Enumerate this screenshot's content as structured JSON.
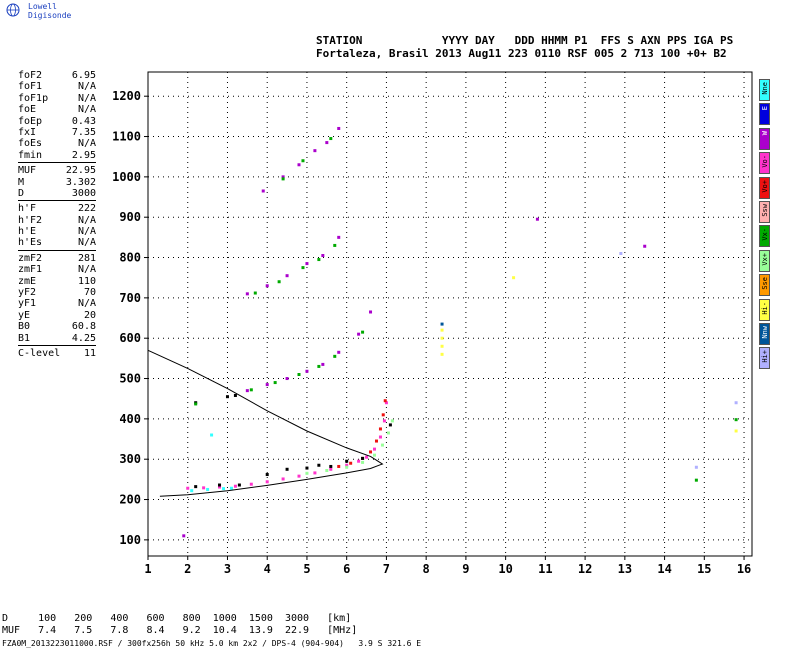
{
  "brand": {
    "name": "Lowell Digisonde",
    "icon": "globe-icon"
  },
  "header": {
    "line1": "STATION            YYYY DAY   DDD HHMM P1  FFS S AXN PPS IGA PS",
    "line2": "Fortaleza, Brasil 2013 Aug11 223 0110 RSF 005 2 713 100 +0+ B2"
  },
  "params": {
    "group1": [
      {
        "k": "foF2",
        "v": "6.95"
      },
      {
        "k": "foF1",
        "v": "N/A"
      },
      {
        "k": "foF1p",
        "v": "N/A"
      },
      {
        "k": "foE",
        "v": "N/A"
      },
      {
        "k": "foEp",
        "v": "0.43"
      },
      {
        "k": "fxI",
        "v": "7.35"
      },
      {
        "k": "foEs",
        "v": "N/A"
      },
      {
        "k": "fmin",
        "v": "2.95"
      }
    ],
    "group2": [
      {
        "k": "MUF",
        "v": "22.95"
      },
      {
        "k": "M",
        "v": "3.302"
      },
      {
        "k": "D",
        "v": "3000"
      }
    ],
    "group3": [
      {
        "k": "h'F",
        "v": "222"
      },
      {
        "k": "h'F2",
        "v": "N/A"
      },
      {
        "k": "h'E",
        "v": "N/A"
      },
      {
        "k": "h'Es",
        "v": "N/A"
      }
    ],
    "group4": [
      {
        "k": "zmF2",
        "v": "281"
      },
      {
        "k": "zmF1",
        "v": "N/A"
      },
      {
        "k": "zmE",
        "v": "110"
      },
      {
        "k": "yF2",
        "v": "70"
      },
      {
        "k": "yF1",
        "v": "N/A"
      },
      {
        "k": "yE",
        "v": "20"
      },
      {
        "k": "B0",
        "v": "60.8"
      },
      {
        "k": "B1",
        "v": "4.25"
      }
    ],
    "group5": [
      {
        "k": "C-level",
        "v": "11"
      }
    ]
  },
  "legend": [
    {
      "label": "Nne",
      "color": "#33ffff"
    },
    {
      "label": "E",
      "color": "#0000dd"
    },
    {
      "label": "W",
      "color": "#aa00cc"
    },
    {
      "label": "Vo-",
      "color": "#ff33cc"
    },
    {
      "label": "Vo+",
      "color": "#ee1111"
    },
    {
      "label": "Ssw",
      "color": "#ffb0b0"
    },
    {
      "label": "Vx-",
      "color": "#00aa00"
    },
    {
      "label": "Vx+",
      "color": "#99ff99"
    },
    {
      "label": "Sse",
      "color": "#ff9900"
    },
    {
      "label": "Hi-",
      "color": "#ffff44"
    },
    {
      "label": "Nnw",
      "color": "#005599"
    },
    {
      "label": "Hi+",
      "color": "#b0b0ff"
    }
  ],
  "dtable": {
    "row1": "D     100   200   400   600   800  1000  1500  3000   [km]",
    "row2": "MUF   7.4   7.5   7.8   8.4   9.2  10.4  13.9  22.9   [MHz]"
  },
  "footer": "FZA0M_2013223011000.RSF / 300fx256h 50 kHz 5.0 km 2x2 / DPS-4 (904-904)   3.9 S 321.6 E",
  "chart_data": {
    "type": "scatter",
    "title": "",
    "xlabel": "",
    "ylabel": "",
    "xlim": [
      1,
      16.2
    ],
    "ylim": [
      60,
      1260
    ],
    "xticks": [
      1,
      2,
      3,
      4,
      5,
      6,
      7,
      8,
      9,
      10,
      11,
      12,
      13,
      14,
      15,
      16
    ],
    "yticks": [
      100,
      200,
      300,
      400,
      500,
      600,
      700,
      800,
      900,
      1000,
      1100,
      1200
    ],
    "grid": true,
    "series": [
      {
        "color": "#ff33cc",
        "points": [
          [
            2.0,
            228
          ],
          [
            2.4,
            229
          ],
          [
            2.8,
            231
          ],
          [
            3.2,
            233
          ],
          [
            3.6,
            238
          ],
          [
            4.0,
            244
          ],
          [
            4.4,
            251
          ],
          [
            4.8,
            258
          ],
          [
            5.2,
            266
          ],
          [
            5.6,
            275
          ],
          [
            6.0,
            285
          ],
          [
            6.3,
            295
          ],
          [
            6.5,
            305
          ],
          [
            6.7,
            325
          ],
          [
            6.85,
            355
          ],
          [
            6.95,
            395
          ],
          [
            7.0,
            440
          ]
        ]
      },
      {
        "color": "#ee1111",
        "points": [
          [
            5.8,
            282
          ],
          [
            6.1,
            290
          ],
          [
            6.4,
            302
          ],
          [
            6.6,
            318
          ],
          [
            6.75,
            345
          ],
          [
            6.85,
            375
          ],
          [
            6.92,
            410
          ],
          [
            6.97,
            445
          ]
        ]
      },
      {
        "color": "#99ff99",
        "points": [
          [
            5.0,
            265
          ],
          [
            5.5,
            272
          ],
          [
            6.0,
            280
          ],
          [
            6.4,
            292
          ],
          [
            6.7,
            310
          ],
          [
            6.9,
            335
          ],
          [
            7.05,
            365
          ],
          [
            7.15,
            395
          ]
        ]
      },
      {
        "color": "#000000",
        "points": [
          [
            2.2,
            232
          ],
          [
            2.8,
            236
          ],
          [
            3.3,
            236
          ],
          [
            4.0,
            262
          ],
          [
            4.5,
            275
          ],
          [
            5.0,
            278
          ],
          [
            5.3,
            285
          ],
          [
            5.6,
            282
          ],
          [
            6.0,
            295
          ],
          [
            6.4,
            302
          ],
          [
            7.1,
            385
          ],
          [
            2.2,
            440
          ],
          [
            3.0,
            455
          ],
          [
            3.2,
            458
          ]
        ]
      },
      {
        "color": "#33ffff",
        "points": [
          [
            2.1,
            222
          ],
          [
            2.5,
            225
          ],
          [
            2.9,
            227
          ],
          [
            3.1,
            228
          ],
          [
            2.6,
            360
          ]
        ]
      },
      {
        "color": "#aa00cc",
        "points": [
          [
            3.5,
            470
          ],
          [
            4.0,
            485
          ],
          [
            4.5,
            500
          ],
          [
            5.0,
            518
          ],
          [
            5.4,
            535
          ],
          [
            5.8,
            565
          ],
          [
            6.3,
            610
          ],
          [
            6.6,
            665
          ],
          [
            3.5,
            710
          ],
          [
            4.0,
            730
          ],
          [
            4.5,
            755
          ],
          [
            5.0,
            785
          ],
          [
            5.4,
            805
          ],
          [
            5.8,
            850
          ],
          [
            3.9,
            965
          ],
          [
            4.4,
            1000
          ],
          [
            4.8,
            1030
          ],
          [
            5.2,
            1065
          ],
          [
            5.5,
            1085
          ],
          [
            5.8,
            1120
          ],
          [
            1.9,
            110
          ],
          [
            13.5,
            828
          ],
          [
            10.8,
            895
          ]
        ]
      },
      {
        "color": "#00aa00",
        "points": [
          [
            3.6,
            472
          ],
          [
            4.2,
            490
          ],
          [
            4.8,
            510
          ],
          [
            5.3,
            530
          ],
          [
            5.7,
            555
          ],
          [
            6.4,
            615
          ],
          [
            3.7,
            712
          ],
          [
            4.3,
            740
          ],
          [
            4.9,
            775
          ],
          [
            5.3,
            795
          ],
          [
            5.7,
            830
          ],
          [
            4.4,
            995
          ],
          [
            4.9,
            1040
          ],
          [
            5.6,
            1095
          ],
          [
            2.2,
            437
          ],
          [
            14.8,
            248
          ],
          [
            15.8,
            398
          ]
        ]
      },
      {
        "color": "#ffff44",
        "points": [
          [
            8.4,
            560
          ],
          [
            8.4,
            580
          ],
          [
            8.4,
            600
          ],
          [
            8.4,
            620
          ],
          [
            10.2,
            750
          ],
          [
            15.8,
            370
          ]
        ]
      },
      {
        "color": "#005599",
        "points": [
          [
            8.4,
            635
          ]
        ]
      },
      {
        "color": "#b0b0ff",
        "points": [
          [
            14.8,
            280
          ],
          [
            15.8,
            440
          ],
          [
            12.9,
            810
          ]
        ]
      }
    ],
    "trace": {
      "color": "#000000",
      "points": [
        [
          1.3,
          208
        ],
        [
          2.0,
          212
        ],
        [
          3.0,
          222
        ],
        [
          4.0,
          235
        ],
        [
          5.0,
          250
        ],
        [
          6.0,
          266
        ],
        [
          6.6,
          277
        ],
        [
          6.9,
          288
        ],
        [
          6.6,
          307
        ],
        [
          6.0,
          328
        ],
        [
          5.0,
          370
        ],
        [
          4.0,
          420
        ],
        [
          3.0,
          475
        ],
        [
          2.0,
          525
        ],
        [
          1.0,
          570
        ]
      ]
    }
  }
}
